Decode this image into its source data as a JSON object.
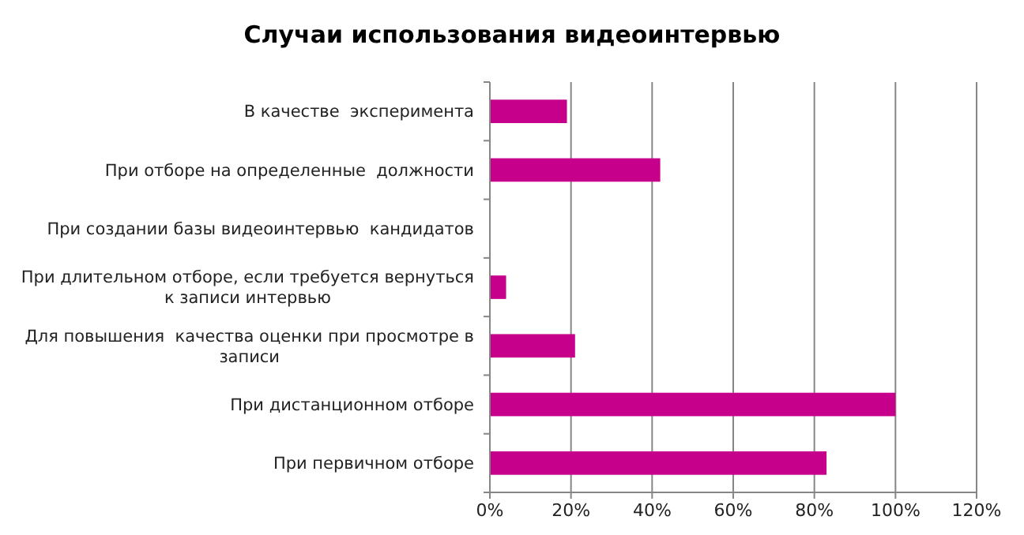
{
  "chart_data": {
    "type": "bar",
    "orientation": "horizontal",
    "title": "Случаи использования видеоинтервью",
    "categories": [
      "В качестве  эксперимента",
      "При отборе на определенные  должности",
      "При создании базы видеоинтервью  кандидатов",
      "При длительном отборе, если требуется вернуться к записи интервью",
      "Для повышения  качества оценки при просмотре в записи",
      "При дистанционном отборе",
      "При первичном отборе"
    ],
    "values": [
      19,
      42,
      0,
      4,
      21,
      100,
      83
    ],
    "color": "#c6008b",
    "xlim": [
      0,
      120
    ],
    "xticks": [
      {
        "value": 0,
        "label": "0%"
      },
      {
        "value": 20,
        "label": "20%"
      },
      {
        "value": 40,
        "label": "40%"
      },
      {
        "value": 60,
        "label": "60%"
      },
      {
        "value": 80,
        "label": "80%"
      },
      {
        "value": 100,
        "label": "100%"
      },
      {
        "value": 120,
        "label": "120%"
      }
    ],
    "grid": "x"
  }
}
